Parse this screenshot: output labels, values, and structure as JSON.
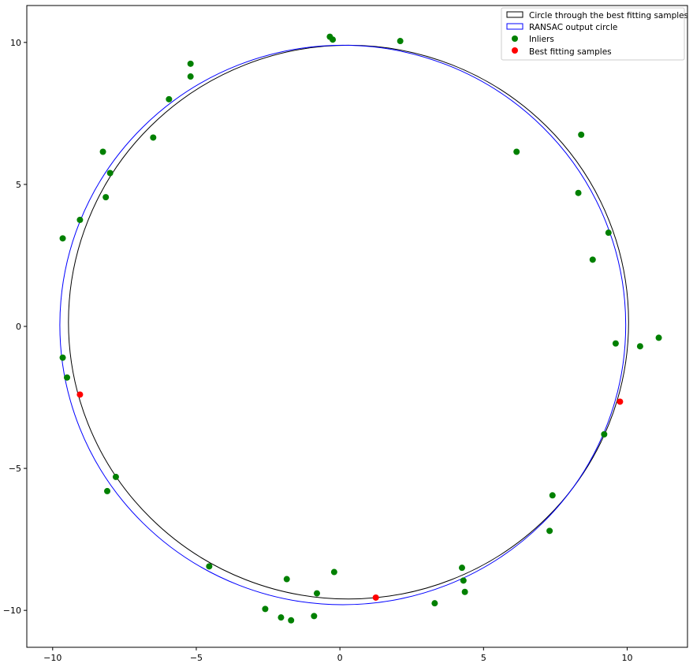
{
  "chart_data": {
    "type": "scatter",
    "title": "",
    "xlabel": "",
    "ylabel": "",
    "xlim": [
      -10.9,
      12.1
    ],
    "ylim": [
      -11.3,
      11.3
    ],
    "xticks": [
      -10,
      -5,
      0,
      5,
      10
    ],
    "yticks": [
      -10,
      -5,
      0,
      5,
      10
    ],
    "xtick_labels": [
      "−10",
      "−5",
      "0",
      "5",
      "10"
    ],
    "ytick_labels": [
      "−10",
      "−5",
      "0",
      "5",
      "10"
    ],
    "grid": false,
    "legend_position": "top-right",
    "circles": [
      {
        "name": "Circle through the best fitting samples",
        "cx": 0.3,
        "cy": 0.15,
        "r": 9.75,
        "color": "#000000"
      },
      {
        "name": "RANSAC output circle",
        "cx": 0.1,
        "cy": 0.05,
        "r": 9.85,
        "color": "#0000ff"
      }
    ],
    "series": [
      {
        "name": "Inliers",
        "color": "#008000",
        "points": [
          [
            -0.35,
            10.2
          ],
          [
            -0.25,
            10.1
          ],
          [
            2.1,
            10.05
          ],
          [
            -5.2,
            9.25
          ],
          [
            -5.2,
            8.8
          ],
          [
            -5.95,
            8.0
          ],
          [
            -6.5,
            6.65
          ],
          [
            -8.25,
            6.15
          ],
          [
            -8.0,
            5.4
          ],
          [
            -8.15,
            4.55
          ],
          [
            -9.05,
            3.75
          ],
          [
            -9.65,
            3.1
          ],
          [
            -9.65,
            -1.1
          ],
          [
            -9.5,
            -1.8
          ],
          [
            -7.8,
            -5.3
          ],
          [
            -8.1,
            -5.8
          ],
          [
            -4.55,
            -8.45
          ],
          [
            -1.85,
            -8.9
          ],
          [
            -0.2,
            -8.65
          ],
          [
            -0.8,
            -9.4
          ],
          [
            -2.6,
            -9.95
          ],
          [
            -2.05,
            -10.25
          ],
          [
            -1.7,
            -10.35
          ],
          [
            -0.9,
            -10.2
          ],
          [
            3.3,
            -9.75
          ],
          [
            4.25,
            -8.5
          ],
          [
            4.3,
            -8.95
          ],
          [
            4.35,
            -9.35
          ],
          [
            7.4,
            -5.95
          ],
          [
            7.3,
            -7.2
          ],
          [
            9.2,
            -3.8
          ],
          [
            9.6,
            -0.6
          ],
          [
            10.45,
            -0.7
          ],
          [
            11.1,
            -0.4
          ],
          [
            6.15,
            6.15
          ],
          [
            8.4,
            6.75
          ],
          [
            8.3,
            4.7
          ],
          [
            9.35,
            3.3
          ],
          [
            8.8,
            2.35
          ]
        ]
      },
      {
        "name": "Best fitting samples",
        "color": "#ff0000",
        "points": [
          [
            -9.05,
            -2.4
          ],
          [
            1.25,
            -9.55
          ],
          [
            9.75,
            -2.65
          ]
        ]
      }
    ],
    "legend": [
      {
        "label": "Circle through the best fitting samples",
        "kind": "patch",
        "edge": "#000000"
      },
      {
        "label": "RANSAC output circle",
        "kind": "patch",
        "edge": "#0000ff"
      },
      {
        "label": "Inliers",
        "kind": "marker",
        "color": "#008000"
      },
      {
        "label": "Best fitting samples",
        "kind": "marker",
        "color": "#ff0000"
      }
    ]
  }
}
